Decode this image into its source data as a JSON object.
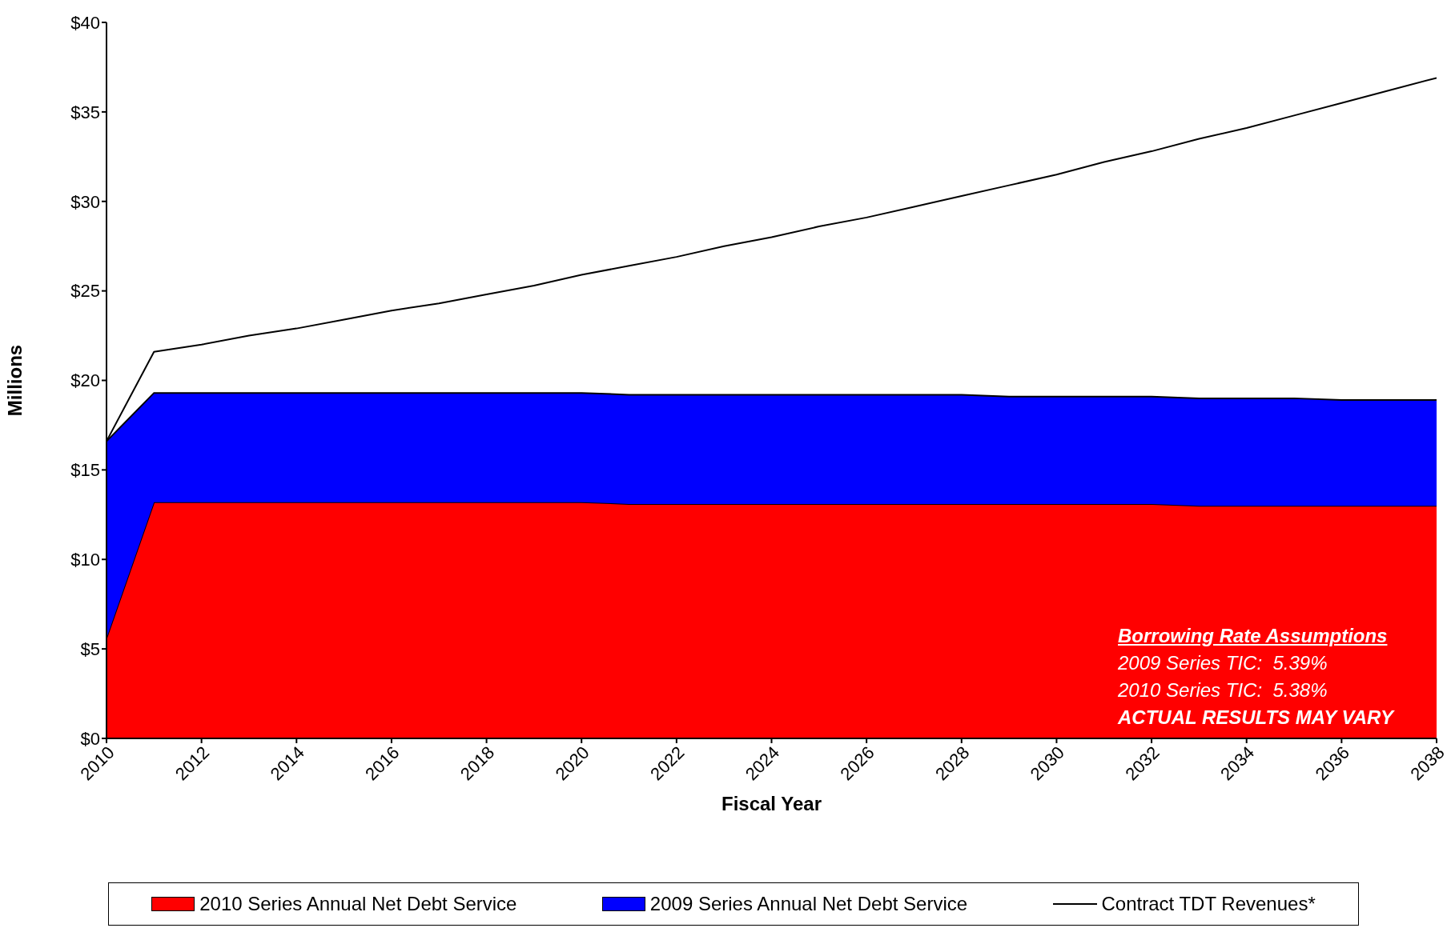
{
  "chart_data": {
    "type": "area",
    "xlabel": "Fiscal Year",
    "ylabel": "Millions",
    "stacked": true,
    "x": [
      2010,
      2011,
      2012,
      2013,
      2014,
      2015,
      2016,
      2017,
      2018,
      2019,
      2020,
      2021,
      2022,
      2023,
      2024,
      2025,
      2026,
      2027,
      2028,
      2029,
      2030,
      2031,
      2032,
      2033,
      2034,
      2035,
      2036,
      2037,
      2038
    ],
    "series": [
      {
        "name": "2010 Series Annual Net Debt Service",
        "color": "#ff0000",
        "values": [
          5.6,
          13.2,
          13.2,
          13.2,
          13.2,
          13.2,
          13.2,
          13.2,
          13.2,
          13.2,
          13.2,
          13.1,
          13.1,
          13.1,
          13.1,
          13.1,
          13.1,
          13.1,
          13.1,
          13.1,
          13.1,
          13.1,
          13.1,
          13.0,
          13.0,
          13.0,
          13.0,
          13.0,
          13.0
        ]
      },
      {
        "name": "2009 Series Annual Net Debt Service",
        "color": "#0000ff",
        "values": [
          11.0,
          6.1,
          6.1,
          6.1,
          6.1,
          6.1,
          6.1,
          6.1,
          6.1,
          6.1,
          6.1,
          6.1,
          6.1,
          6.1,
          6.1,
          6.1,
          6.1,
          6.1,
          6.1,
          6.0,
          6.0,
          6.0,
          6.0,
          6.0,
          6.0,
          6.0,
          5.9,
          5.9,
          5.9
        ]
      },
      {
        "name": "Contract TDT Revenues*",
        "type": "line",
        "color": "#000000",
        "values": [
          16.6,
          21.6,
          22.0,
          22.5,
          22.9,
          23.4,
          23.9,
          24.3,
          24.8,
          25.3,
          25.9,
          26.4,
          26.9,
          27.5,
          28.0,
          28.6,
          29.1,
          29.7,
          30.3,
          30.9,
          31.5,
          32.2,
          32.8,
          33.5,
          34.1,
          34.8,
          35.5,
          36.2,
          36.9
        ]
      }
    ],
    "xlim": [
      2010,
      2038
    ],
    "xticks": [
      2010,
      2012,
      2014,
      2016,
      2018,
      2020,
      2022,
      2024,
      2026,
      2028,
      2030,
      2032,
      2034,
      2036,
      2038
    ],
    "ylim": [
      0,
      40
    ],
    "yticks": [
      {
        "value": 0,
        "label": "$0"
      },
      {
        "value": 5,
        "label": "$5"
      },
      {
        "value": 10,
        "label": "$10"
      },
      {
        "value": 15,
        "label": "$15"
      },
      {
        "value": 20,
        "label": "$20"
      },
      {
        "value": 25,
        "label": "$25"
      },
      {
        "value": 30,
        "label": "$30"
      },
      {
        "value": 35,
        "label": "$35"
      },
      {
        "value": 40,
        "label": "$40"
      }
    ],
    "annotations": [
      "Borrowing Rate Assumptions",
      "2009 Series TIC:  5.39%",
      "2010 Series TIC:  5.38%",
      "ACTUAL RESULTS MAY VARY"
    ],
    "legend": "bottom",
    "marker": "none"
  }
}
